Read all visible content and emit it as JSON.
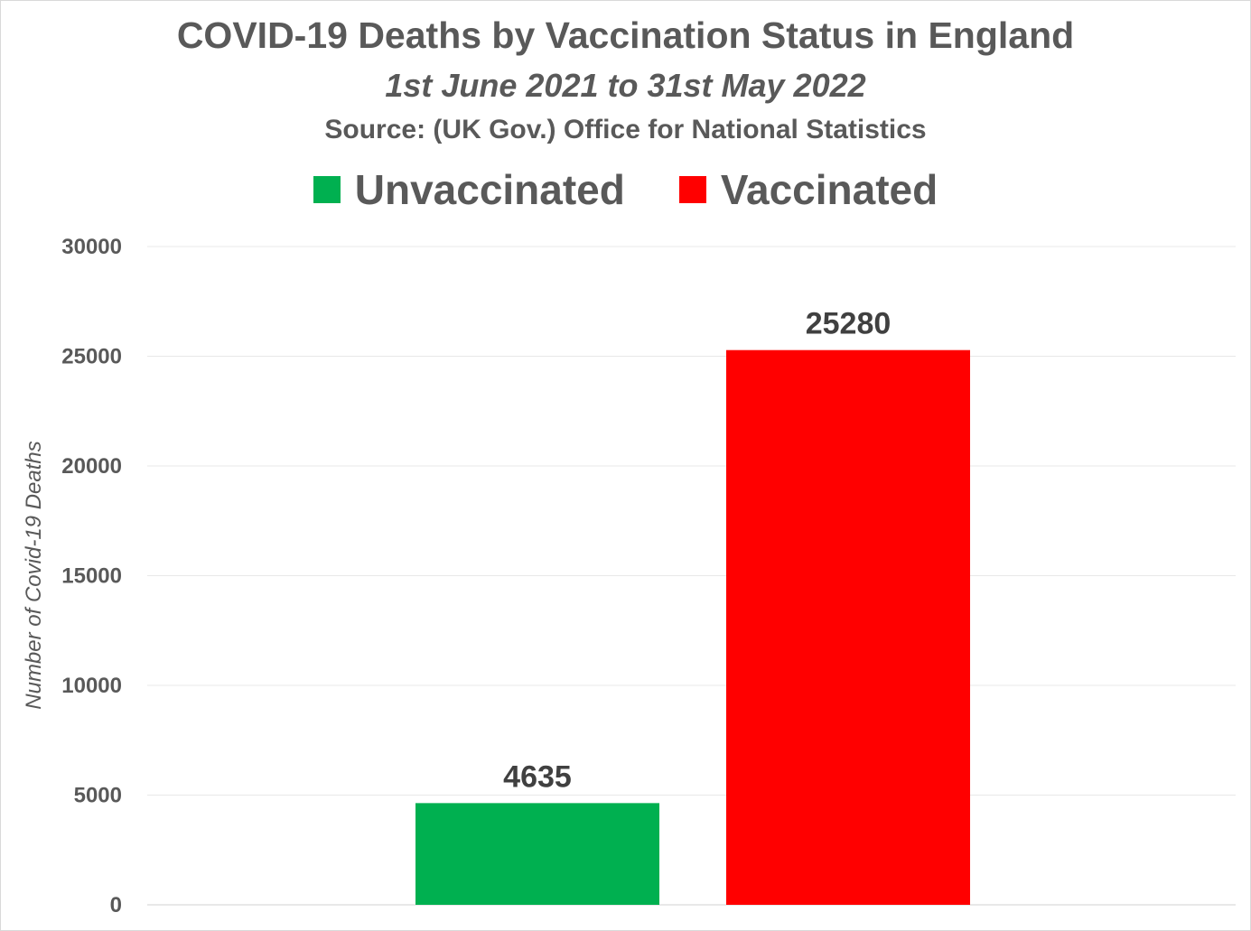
{
  "chart_data": {
    "type": "bar",
    "title": "COVID-19 Deaths by Vaccination Status in England",
    "subtitle": "1st June 2021 to 31st May 2022",
    "source": "Source: (UK Gov.) Office for National Statistics",
    "xlabel": "",
    "ylabel": "Number of Covid-19 Deaths",
    "ylim": [
      0,
      30000
    ],
    "yticks": [
      0,
      5000,
      10000,
      15000,
      20000,
      25000,
      30000
    ],
    "grid": true,
    "legend_position": "top",
    "categories": [
      "Unvaccinated",
      "Vaccinated"
    ],
    "values": [
      4635,
      25280
    ],
    "colors": [
      "#00b050",
      "#ff0000"
    ],
    "data_labels": [
      "4635",
      "25280"
    ]
  }
}
